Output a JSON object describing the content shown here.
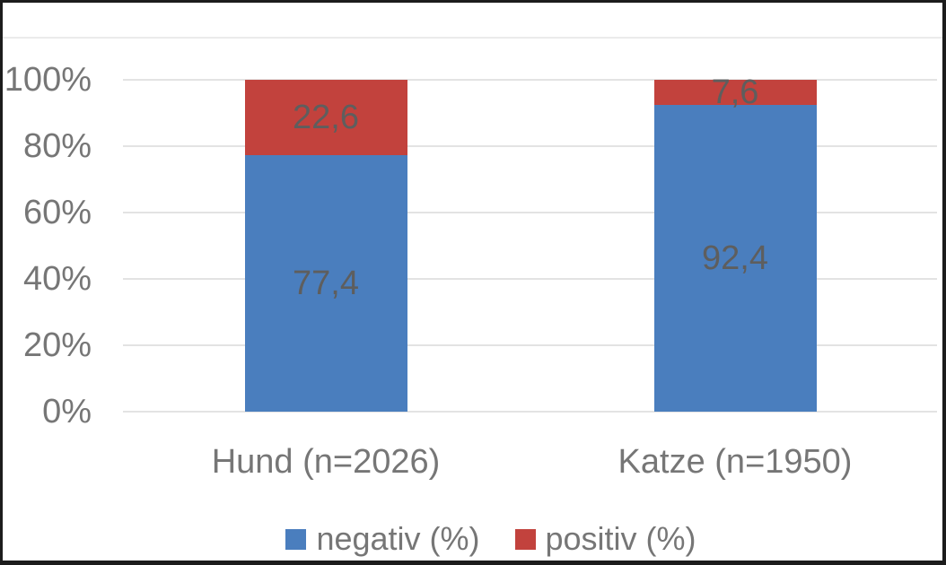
{
  "chart_data": {
    "type": "bar",
    "stacked": true,
    "orientation": "vertical",
    "categories": [
      "Hund (n=2026)",
      "Katze (n=1950)"
    ],
    "series": [
      {
        "name": "negativ (%)",
        "color": "#4a7ebe",
        "values": [
          77.4,
          92.4
        ],
        "display_labels": [
          "77,4",
          "92,4"
        ]
      },
      {
        "name": "positiv (%)",
        "color": "#c2423d",
        "values": [
          22.6,
          7.6
        ],
        "display_labels": [
          "22,6",
          "7,6"
        ]
      }
    ],
    "y_axis": {
      "min": 0,
      "max": 100,
      "tick_step": 20,
      "ticks": [
        "0%",
        "20%",
        "40%",
        "60%",
        "80%",
        "100%"
      ],
      "grid": true
    },
    "legend_position": "bottom",
    "colors": {
      "grid": "#e3e3e3",
      "tick_text": "#767676",
      "data_label_text": "#5e5e5e",
      "frame": "#1c1c1c"
    }
  }
}
